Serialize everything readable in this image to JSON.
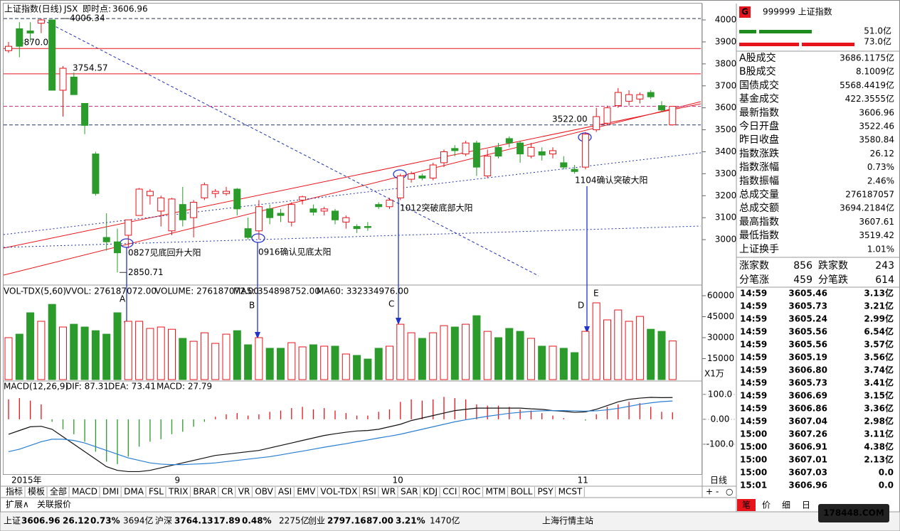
{
  "header": {
    "name": "上证指数(日线)",
    "code": "JSX",
    "realtime_label": "即时点:",
    "realtime_value": "3606.96"
  },
  "chart_data": [
    {
      "type": "candlestick",
      "ylim": [
        2803,
        4026
      ],
      "yticks": [
        3000,
        3100,
        3200,
        3300,
        3400,
        3500,
        3600,
        3700,
        3800,
        3900,
        4000
      ],
      "up_color": "#e8141c",
      "down_color": "#2b9b2b",
      "categories": [
        "2015年",
        null,
        null,
        null,
        null,
        null,
        null,
        null,
        null,
        null,
        null,
        null,
        null,
        null,
        null,
        "9",
        null,
        null,
        null,
        null,
        null,
        null,
        null,
        null,
        null,
        null,
        null,
        null,
        null,
        null,
        null,
        null,
        null,
        null,
        null,
        "10",
        null,
        null,
        null,
        null,
        null,
        null,
        null,
        null,
        null,
        null,
        null,
        null,
        null,
        null,
        null,
        null,
        "11",
        null,
        null,
        null,
        null,
        null,
        null,
        null,
        null,
        null
      ],
      "candles": [
        [
          3860,
          3880,
          3900,
          3850
        ],
        [
          3960,
          3880,
          3990,
          3830
        ],
        [
          3950,
          3940,
          3990,
          3900
        ],
        [
          3985,
          4000,
          4006.34,
          3940
        ],
        [
          4000,
          3680,
          4000,
          3680
        ],
        [
          3680,
          3780,
          3790,
          3560
        ],
        [
          3740,
          3660,
          3760,
          3660
        ],
        [
          3620,
          3520,
          3620,
          3480
        ],
        [
          3390,
          3210,
          3400,
          3200
        ],
        [
          3010,
          2990,
          3120,
          2950
        ],
        [
          2990,
          2940,
          3050,
          2850.71
        ],
        [
          3020,
          3090,
          3090,
          2960
        ],
        [
          3110,
          3230,
          3235,
          3110
        ],
        [
          3200,
          3220,
          3230,
          3160
        ],
        [
          3130,
          3190,
          3200,
          3060
        ],
        [
          3040,
          3185,
          3190,
          3020
        ],
        [
          3160,
          3090,
          3240,
          3060
        ],
        [
          3100,
          3170,
          3180,
          3010
        ],
        [
          3190,
          3250,
          3260,
          3180
        ],
        [
          3210,
          3220,
          3230,
          3190
        ],
        [
          3210,
          3220,
          3240,
          3200
        ],
        [
          3230,
          3140,
          3235,
          3110
        ],
        [
          3050,
          3010,
          3100,
          3000
        ],
        [
          3040,
          3150,
          3180,
          3000
        ],
        [
          3140,
          3100,
          3160,
          3070
        ],
        [
          3120,
          3110,
          3140,
          3080
        ],
        [
          3080,
          3160,
          3170,
          3060
        ],
        [
          3180,
          3195,
          3200,
          3160
        ],
        [
          3140,
          3125,
          3160,
          3110
        ],
        [
          3130,
          3140,
          3150,
          3110
        ],
        [
          3130,
          3090,
          3140,
          3070
        ],
        [
          3080,
          3100,
          3110,
          3050
        ],
        [
          3060,
          3050,
          3070,
          3030
        ],
        [
          3060,
          3055,
          3080,
          3040
        ],
        [
          3160,
          3150,
          3170,
          3140
        ],
        [
          3150,
          3180,
          3190,
          3140
        ],
        [
          3190,
          3290,
          3300,
          3180
        ],
        [
          3275,
          3300,
          3310,
          3260
        ],
        [
          3290,
          3280,
          3300,
          3270
        ],
        [
          3280,
          3340,
          3350,
          3270
        ],
        [
          3350,
          3400,
          3410,
          3330
        ],
        [
          3415,
          3405,
          3430,
          3380
        ],
        [
          3390,
          3440,
          3450,
          3380
        ],
        [
          3440,
          3330,
          3450,
          3290
        ],
        [
          3290,
          3380,
          3410,
          3280
        ],
        [
          3420,
          3380,
          3440,
          3370
        ],
        [
          3460,
          3440,
          3470,
          3420
        ],
        [
          3440,
          3390,
          3450,
          3350
        ],
        [
          3380,
          3420,
          3440,
          3370
        ],
        [
          3400,
          3385,
          3420,
          3360
        ],
        [
          3390,
          3405,
          3420,
          3370
        ],
        [
          3350,
          3330,
          3380,
          3320
        ],
        [
          3320,
          3310,
          3340,
          3300
        ],
        [
          3330,
          3480,
          3490,
          3320
        ],
        [
          3500,
          3560,
          3600,
          3490
        ],
        [
          3530,
          3600,
          3610,
          3520
        ],
        [
          3610,
          3670,
          3690,
          3600
        ],
        [
          3630,
          3660,
          3680,
          3610
        ],
        [
          3640,
          3660,
          3670,
          3620
        ],
        [
          3670,
          3650,
          3680,
          3640
        ],
        [
          3610,
          3590,
          3630,
          3580
        ],
        [
          3522.46,
          3606.96,
          3607.61,
          3519.42
        ]
      ],
      "hlines": [
        {
          "value": 4006.34,
          "color": "#223355",
          "dash": true
        },
        {
          "value": 3870,
          "color": "#e8141c",
          "dash": false,
          "label": "3870.00"
        },
        {
          "value": 3754.57,
          "color": "#e8141c",
          "dash": false,
          "label": "3754.57"
        },
        {
          "value": 3606.96,
          "color": "#d0308a",
          "dash": true
        },
        {
          "value": 3522,
          "color": "#223377",
          "dash": true,
          "label": "3522.00"
        }
      ],
      "price_labels": [
        {
          "value": 4006.34,
          "label": "4006.34"
        },
        {
          "value": 2850.71,
          "label": "2850.71"
        }
      ],
      "annotations": [
        "0827见底回升大阳",
        "0916确认见底太阳",
        "1012突破底部大阳",
        "1104确认突破大阳"
      ],
      "letters": [
        "A",
        "B",
        "C",
        "D",
        "E"
      ]
    },
    {
      "type": "bar",
      "header": [
        "VOL-TDX(5,60)",
        "VVOL: 276187072.00",
        "VOLUME: 276187072.00",
        "MA5: 354898752.00",
        "MA60: 332334976.00"
      ],
      "unit": "X1万",
      "ylim": [
        0,
        66600
      ],
      "yticks": [
        15000,
        30000,
        45000,
        60000
      ],
      "values": [
        30000,
        32500,
        47800,
        41700,
        53800,
        37600,
        39600,
        37600,
        35000,
        32500,
        47800,
        41700,
        41700,
        36600,
        37600,
        36000,
        29500,
        27400,
        33500,
        25900,
        32500,
        35000,
        24900,
        30000,
        22400,
        22400,
        26400,
        23400,
        24900,
        23900,
        23900,
        18300,
        17300,
        14700,
        22400,
        23900,
        39600,
        33500,
        29500,
        33500,
        38600,
        37600,
        39600,
        45700,
        34500,
        30000,
        36600,
        34500,
        29500,
        23900,
        23900,
        22400,
        19300,
        34500,
        54900,
        42700,
        49800,
        41700,
        45200,
        36000,
        34500,
        27619
      ]
    },
    {
      "type": "macd",
      "header": [
        "MACD(12,26,9)",
        "DIF: 87.31",
        "DEA: 73.41",
        "MACD: 27.79"
      ],
      "ylim": [
        -223,
        148
      ],
      "yticks": [
        {
          "value": 100,
          "label": "100.0"
        },
        {
          "value": 0,
          "label": "0.00"
        },
        {
          "value": -100,
          "label": "-100.0"
        }
      ],
      "values": [
        80,
        85,
        75,
        60,
        -10,
        -40,
        -60,
        -90,
        -130,
        -170,
        -180,
        -150,
        -110,
        -90,
        -80,
        -60,
        -50,
        -30,
        -10,
        10,
        20,
        25,
        15,
        20,
        30,
        35,
        45,
        50,
        40,
        45,
        35,
        25,
        15,
        15,
        30,
        40,
        70,
        80,
        75,
        80,
        90,
        85,
        80,
        60,
        55,
        55,
        50,
        40,
        35,
        25,
        15,
        5,
        0,
        -5,
        20,
        50,
        60,
        70,
        65,
        50,
        30,
        27.79
      ],
      "dif": [
        -60,
        -45,
        -30,
        -28,
        -40,
        -70,
        -100,
        -130,
        -160,
        -190,
        -205,
        -210,
        -210,
        -205,
        -195,
        -185,
        -175,
        -165,
        -155,
        -145,
        -140,
        -135,
        -130,
        -125,
        -115,
        -105,
        -95,
        -85,
        -75,
        -65,
        -58,
        -52,
        -47,
        -45,
        -40,
        -30,
        -20,
        -5,
        5,
        15,
        25,
        35,
        40,
        45,
        45,
        45,
        45,
        45,
        42,
        40,
        35,
        32,
        28,
        30,
        40,
        55,
        70,
        80,
        85,
        88,
        87,
        87.31
      ],
      "dea": [
        -130,
        -120,
        -105,
        -90,
        -80,
        -80,
        -85,
        -95,
        -110,
        -125,
        -140,
        -155,
        -165,
        -175,
        -180,
        -182,
        -182,
        -180,
        -178,
        -175,
        -170,
        -165,
        -160,
        -155,
        -150,
        -143,
        -135,
        -128,
        -120,
        -112,
        -105,
        -98,
        -90,
        -83,
        -75,
        -68,
        -60,
        -50,
        -40,
        -30,
        -20,
        -10,
        -2,
        5,
        12,
        18,
        24,
        28,
        32,
        34,
        35,
        35,
        34,
        33,
        34,
        38,
        44,
        52,
        60,
        66,
        71,
        73.41
      ],
      "dif_color": "#111111",
      "dea_color": "#2a7fd0"
    }
  ],
  "period": "日线",
  "zoom": [
    "+",
    "-",
    "○"
  ],
  "tabs": [
    "指标",
    "模板",
    "全部",
    "MACD",
    "DMI",
    "DMA",
    "FSL",
    "TRIX",
    "BRAR",
    "CR",
    "VR",
    "OBV",
    "ASI",
    "EMV",
    "VOL-TDX",
    "RSI",
    "WR",
    "SAR",
    "KDJ",
    "CCI",
    "ROC",
    "MTM",
    "BOLL",
    "PSY",
    "MCST"
  ],
  "subtabs": [
    "扩展∧",
    "关联报价"
  ],
  "panel": {
    "badge": "G",
    "title": "999999 上证指数",
    "buy": "51.0亿",
    "sell": "73.0亿",
    "quote": [
      {
        "label": "A股成交",
        "value": "3686.1175亿",
        "color": "#000"
      },
      {
        "label": "B股成交",
        "value": "8.1009亿",
        "color": "#000"
      },
      {
        "label": "国债成交",
        "value": "5568.4419亿",
        "color": "#000"
      },
      {
        "label": "基金成交",
        "value": "422.3555亿",
        "color": "#000"
      },
      {
        "label": "最新指数",
        "value": "3606.96",
        "color": "#e8141c"
      },
      {
        "label": "今日开盘",
        "value": "3522.46",
        "color": "#1e8c1e"
      },
      {
        "label": "昨日收盘",
        "value": "3580.84",
        "color": "#000"
      },
      {
        "label": "指数涨跌",
        "value": "26.12",
        "color": "#e8141c"
      },
      {
        "label": "指数涨幅",
        "value": "0.73%",
        "color": "#e8141c"
      },
      {
        "label": "指数振幅",
        "value": "2.46%",
        "color": "#000"
      },
      {
        "label": "总成交量",
        "value": "276187057",
        "color": "#000"
      },
      {
        "label": "总成交额",
        "value": "3694.2184亿",
        "color": "#000"
      },
      {
        "label": "最高指数",
        "value": "3607.61",
        "color": "#e8141c"
      },
      {
        "label": "最低指数",
        "value": "3519.42",
        "color": "#1e8c1e"
      },
      {
        "label": "上证换手",
        "value": "1.01%",
        "color": "#000"
      }
    ],
    "stats": [
      [
        "涨家数",
        "856",
        "跌家数",
        "243"
      ],
      [
        "分笔涨",
        "459",
        "分笔跌",
        "614"
      ]
    ],
    "ticks": [
      [
        "14:59",
        "3605.46",
        "3.13亿"
      ],
      [
        "14:59",
        "3605.73",
        "3.21亿"
      ],
      [
        "14:59",
        "3605.24",
        "2.99亿"
      ],
      [
        "14:59",
        "3605.56",
        "6.54亿"
      ],
      [
        "14:59",
        "3605.56",
        "3.57亿"
      ],
      [
        "14:59",
        "3605.19",
        "3.56亿"
      ],
      [
        "14:59",
        "3606.80",
        "3.74亿"
      ],
      [
        "14:59",
        "3605.73",
        "3.41亿"
      ],
      [
        "14:59",
        "3606.69",
        "3.15亿"
      ],
      [
        "14:59",
        "3606.86",
        "3.36亿"
      ],
      [
        "14:59",
        "3607.04",
        "2.98亿"
      ],
      [
        "15:00",
        "3607.26",
        "3.11亿"
      ],
      [
        "15:00",
        "3606.91",
        "4.38亿"
      ],
      [
        "15:00",
        "3607.01",
        "2.13亿"
      ],
      [
        "15:00",
        "3607.03",
        "0.0"
      ],
      [
        "15:01",
        "3606.96",
        "0.0"
      ]
    ],
    "tabs": [
      "笔",
      "价",
      "细",
      "日"
    ]
  },
  "status": [
    {
      "text": "上证",
      "color": "#000"
    },
    {
      "text": "3606.96",
      "color": "#e8141c"
    },
    {
      "text": "26.12",
      "color": "#e8141c"
    },
    {
      "text": "0.73%",
      "color": "#e8141c"
    },
    {
      "text": "3694亿",
      "color": "#000"
    },
    {
      "text": "沪深",
      "color": "#000"
    },
    {
      "text": "3764.13",
      "color": "#e8141c"
    },
    {
      "text": "17.89",
      "color": "#e8141c"
    },
    {
      "text": "0.48%",
      "color": "#e8141c"
    },
    {
      "text": "2275亿",
      "color": "#000"
    },
    {
      "text": "创业",
      "color": "#000"
    },
    {
      "text": "2797.16",
      "color": "#e8141c"
    },
    {
      "text": "87.00",
      "color": "#e8141c"
    },
    {
      "text": "3.21%",
      "color": "#e8141c"
    },
    {
      "text": "1470亿",
      "color": "#000"
    },
    {
      "text": "上海行情主站",
      "color": "#000"
    }
  ],
  "watermark": "178448.COM"
}
